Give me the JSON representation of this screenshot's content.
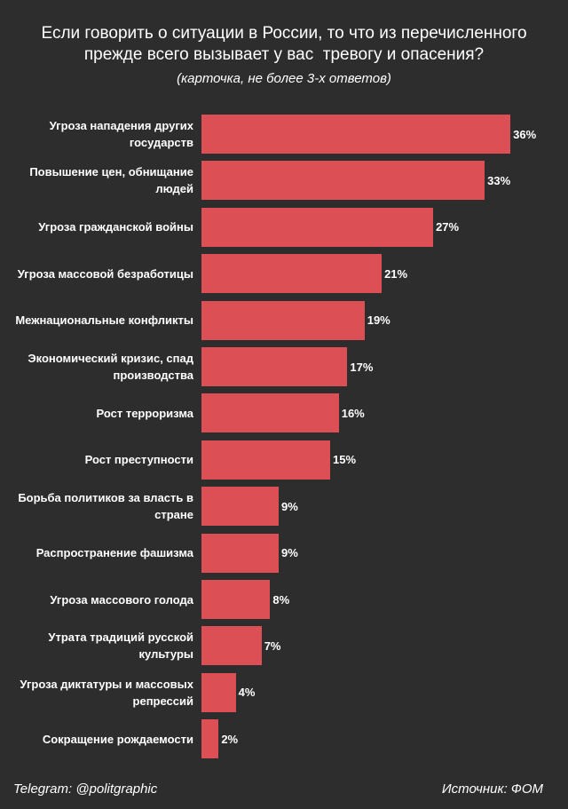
{
  "chart_data": {
    "type": "bar",
    "orientation": "horizontal",
    "title": "Если говорить о ситуации в России, то что из перечисленного прежде всего вызывает у вас  тревогу и опасения?",
    "subtitle": "(карточка, не более 3-х ответов)",
    "categories": [
      "Угроза нападения других государств",
      "Повышение цен, обнищание людей",
      "Угроза гражданской войны",
      "Угроза массовой безработицы",
      "Межнациональные конфликты",
      "Экономический кризис, спад производства",
      "Рост терроризма",
      "Рост преступности",
      "Борьба политиков за власть в стране",
      "Распространение фашизма",
      "Угроза массового голода",
      "Утрата традиций русской культуры",
      "Угроза диктатуры и массовых репрессий",
      "Сокращение рождаемости"
    ],
    "values": [
      36,
      33,
      27,
      21,
      19,
      17,
      16,
      15,
      9,
      9,
      8,
      7,
      4,
      2
    ],
    "value_labels": [
      "36%",
      "33%",
      "27%",
      "21%",
      "19%",
      "17%",
      "16%",
      "15%",
      "9%",
      "9%",
      "8%",
      "7%",
      "4%",
      "2%"
    ],
    "color": "#dc5055",
    "footer_left": "Telegram: @politgraphic",
    "footer_right": "Источник: ФОМ"
  }
}
